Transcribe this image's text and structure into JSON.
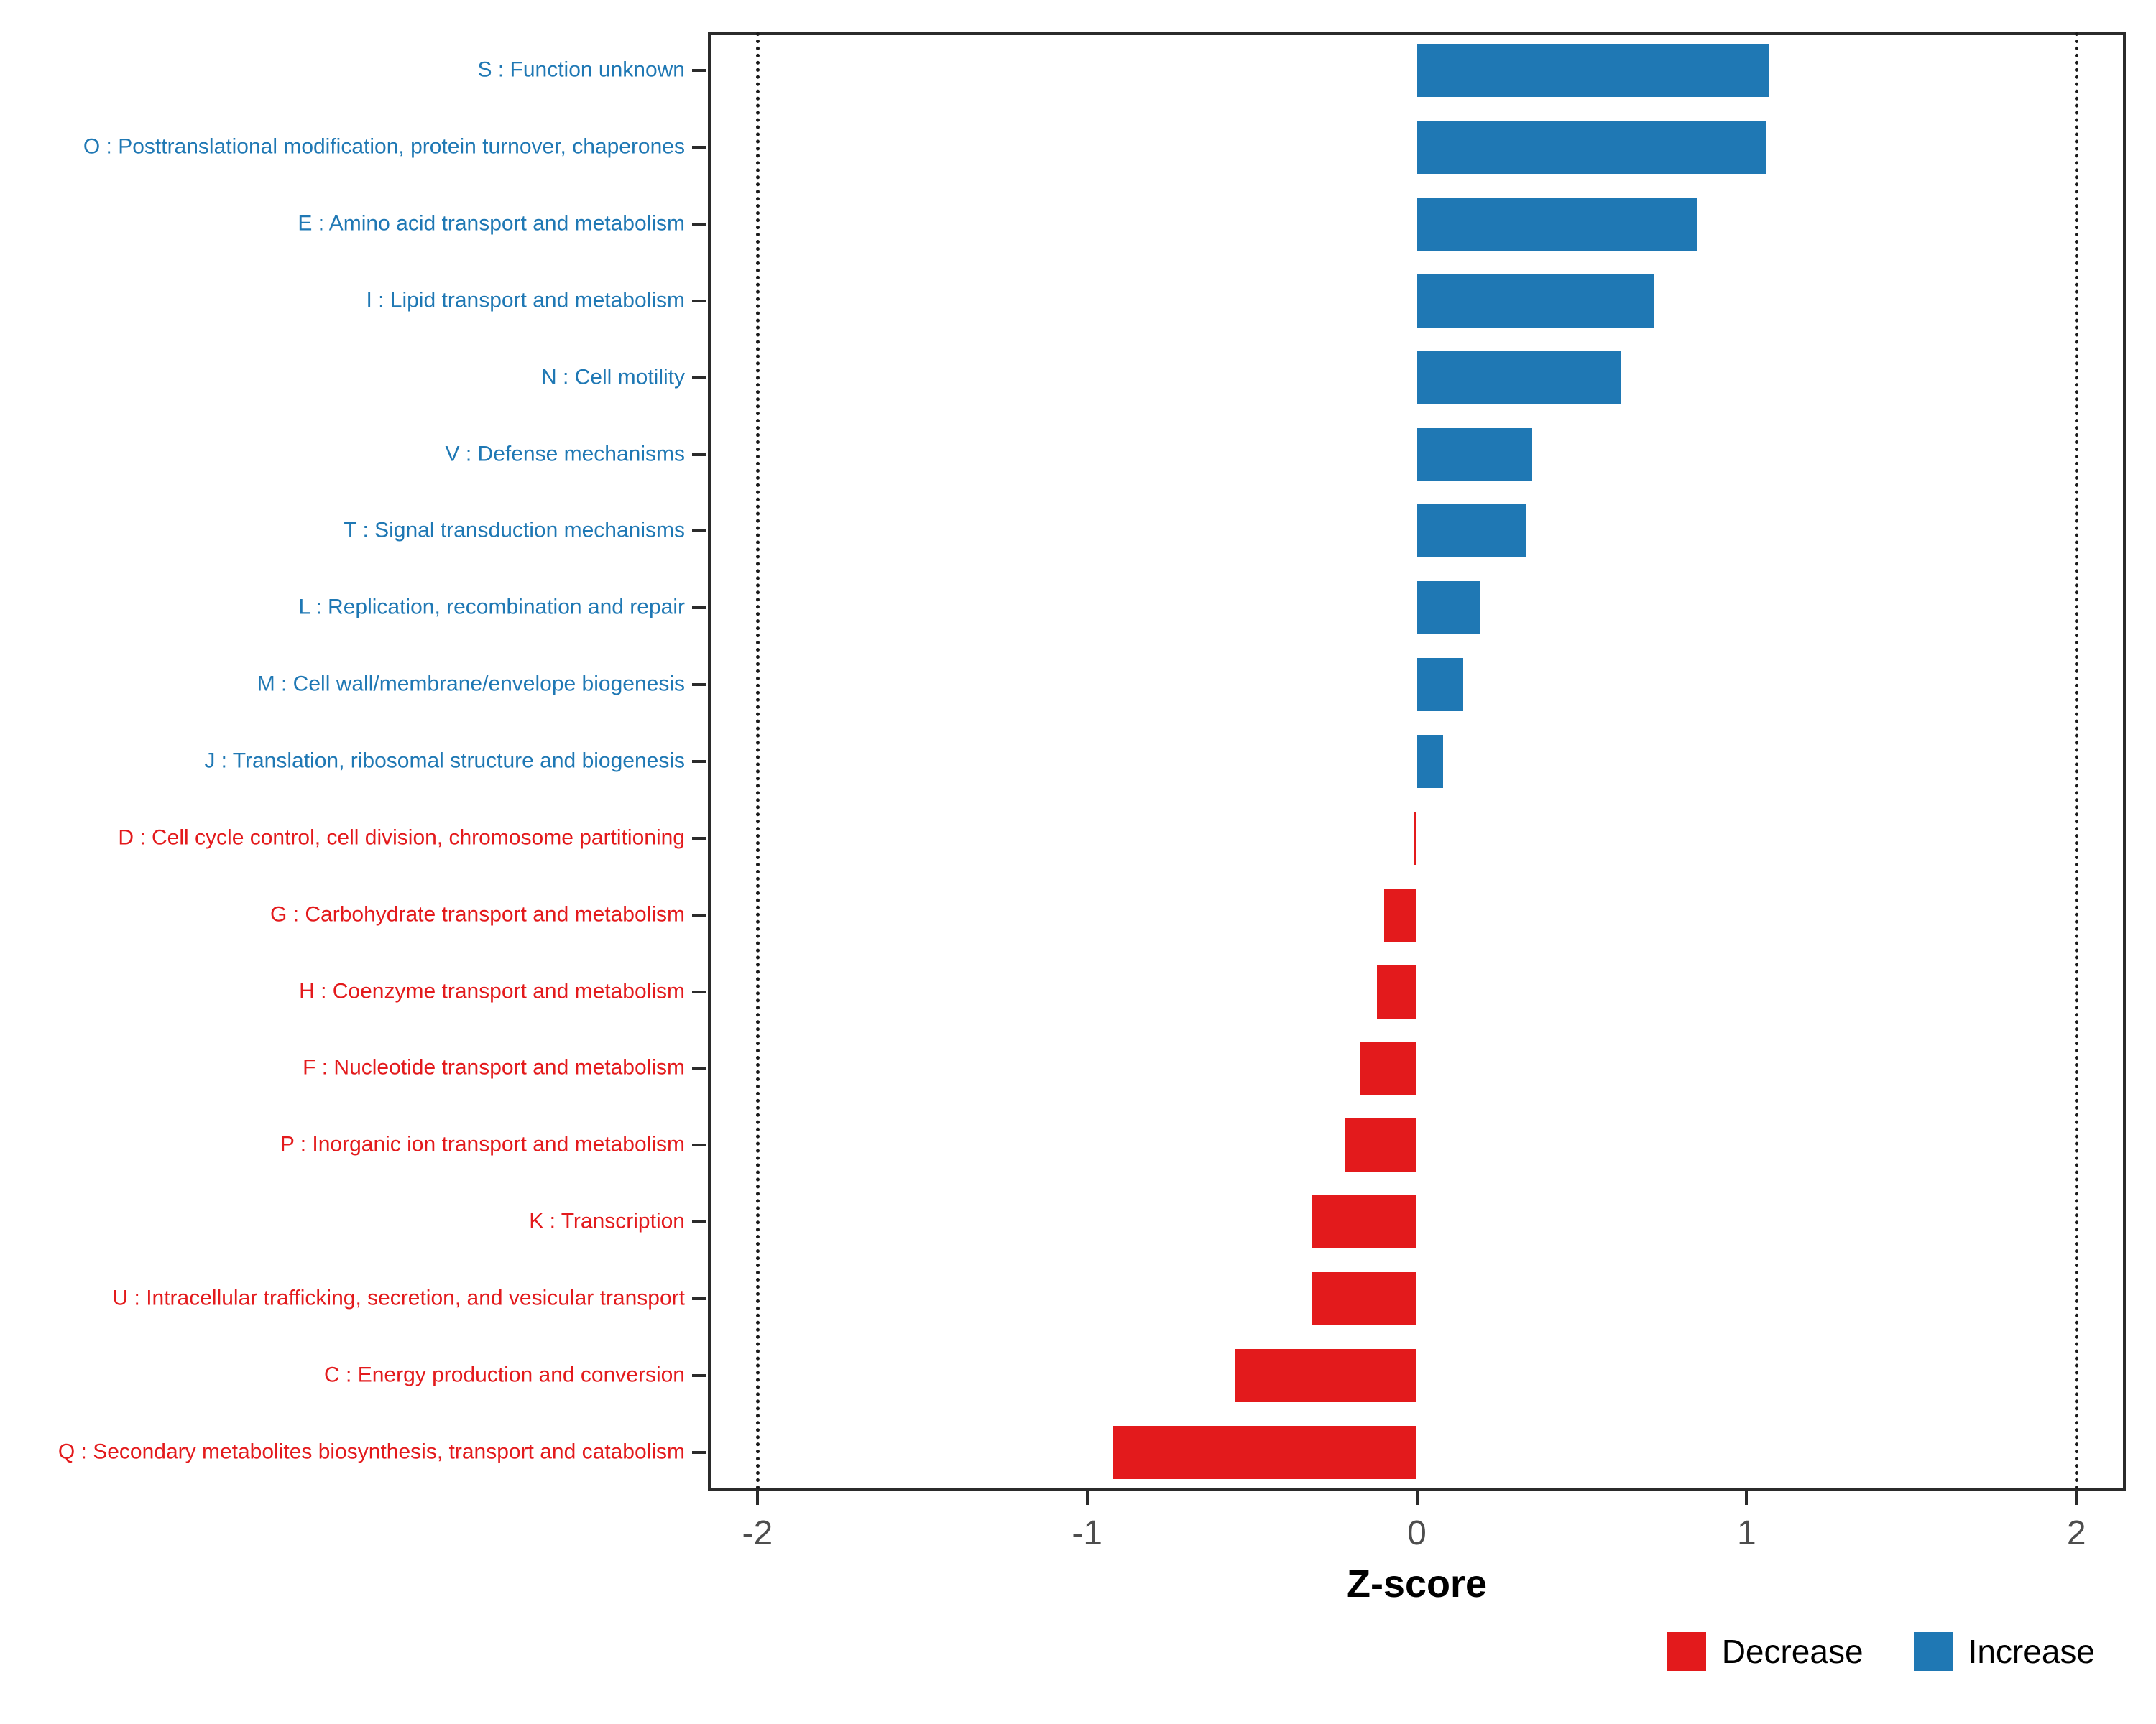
{
  "page": {
    "background": "#ffffff"
  },
  "chart_data": {
    "type": "bar",
    "orientation": "horizontal",
    "title": "",
    "xlabel": "Z-score",
    "x_ticks": [
      -2,
      -1,
      0,
      1,
      2
    ],
    "xlim": [
      -2.15,
      2.15
    ],
    "reference_lines": [
      -2,
      2
    ],
    "grid": "off",
    "legend_position": "bottom-right",
    "colors": {
      "Increase": "#1F78B4",
      "Decrease": "#E31A1C"
    },
    "legend": [
      {
        "label": "Decrease",
        "color": "#E31A1C"
      },
      {
        "label": "Increase",
        "color": "#1F78B4"
      }
    ],
    "categories": [
      {
        "label": "S : Function unknown",
        "value": 1.07,
        "direction": "Increase"
      },
      {
        "label": "O : Posttranslational modification, protein turnover, chaperones",
        "value": 1.06,
        "direction": "Increase"
      },
      {
        "label": "E : Amino acid transport and metabolism",
        "value": 0.85,
        "direction": "Increase"
      },
      {
        "label": "I : Lipid transport and metabolism",
        "value": 0.72,
        "direction": "Increase"
      },
      {
        "label": "N : Cell motility",
        "value": 0.62,
        "direction": "Increase"
      },
      {
        "label": "V : Defense mechanisms",
        "value": 0.35,
        "direction": "Increase"
      },
      {
        "label": "T : Signal transduction mechanisms",
        "value": 0.33,
        "direction": "Increase"
      },
      {
        "label": "L : Replication, recombination and repair",
        "value": 0.19,
        "direction": "Increase"
      },
      {
        "label": "M : Cell wall/membrane/envelope biogenesis",
        "value": 0.14,
        "direction": "Increase"
      },
      {
        "label": "J : Translation, ribosomal structure and biogenesis",
        "value": 0.08,
        "direction": "Increase"
      },
      {
        "label": "D : Cell cycle control, cell division, chromosome partitioning",
        "value": -0.01,
        "direction": "Decrease"
      },
      {
        "label": "G : Carbohydrate transport and metabolism",
        "value": -0.1,
        "direction": "Decrease"
      },
      {
        "label": "H : Coenzyme transport and metabolism",
        "value": -0.12,
        "direction": "Decrease"
      },
      {
        "label": "F : Nucleotide transport and metabolism",
        "value": -0.17,
        "direction": "Decrease"
      },
      {
        "label": "P : Inorganic ion transport and metabolism",
        "value": -0.22,
        "direction": "Decrease"
      },
      {
        "label": "K : Transcription",
        "value": -0.32,
        "direction": "Decrease"
      },
      {
        "label": "U : Intracellular trafficking, secretion, and vesicular transport",
        "value": -0.32,
        "direction": "Decrease"
      },
      {
        "label": "C : Energy production and conversion",
        "value": -0.55,
        "direction": "Decrease"
      },
      {
        "label": "Q : Secondary metabolites biosynthesis, transport and catabolism",
        "value": -0.92,
        "direction": "Decrease"
      }
    ]
  }
}
